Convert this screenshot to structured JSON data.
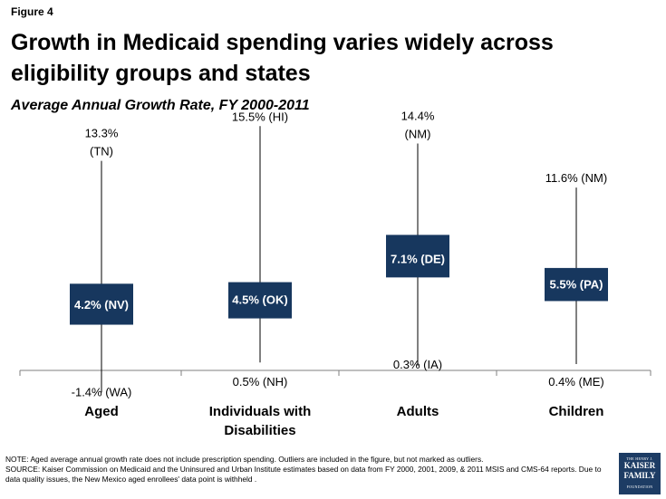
{
  "figure_label": "Figure 4",
  "title": "Growth in Medicaid spending varies widely across eligibility groups and states",
  "subtitle": "Average Annual Growth Rate, FY 2000-2011",
  "footnotes": {
    "note": "NOTE: Aged average annual growth rate does not include prescription spending. Outliers are included in the figure, but not marked as outliers.",
    "source": "SOURCE: Kaiser Commission on Medicaid and the Uninsured and Urban Institute estimates based on data from FY 2000, 2001, 2009, & 2011 MSIS and CMS-64 reports.  Due to data quality issues, the New Mexico aged enrollees' data point is withheld ."
  },
  "logo": {
    "line1": "THE HENRY J.",
    "line2": "KAISER",
    "line3": "FAMILY",
    "line4": "FOUNDATION"
  },
  "colors": {
    "box": "#17375e",
    "box_text": "#ffffff",
    "line": "#7f7f7f"
  },
  "chart_data": {
    "type": "box",
    "title": "Average Annual Growth Rate, FY 2000-2011",
    "units": "percent",
    "ylim": [
      -2,
      17
    ],
    "grid": false,
    "categories": [
      "Aged",
      "Individuals with Disabilities",
      "Adults",
      "Children"
    ],
    "category_lines": [
      [
        "Aged"
      ],
      [
        "Individuals with",
        "Disabilities"
      ],
      [
        "Adults"
      ],
      [
        "Children"
      ]
    ],
    "series": [
      {
        "name": "Aged",
        "max": 13.3,
        "max_label": [
          "13.3%",
          "(TN)"
        ],
        "median": 4.2,
        "median_label": "4.2% (NV)",
        "box_low": 2.9,
        "box_high": 5.5,
        "min": -1.4,
        "min_label": "-1.4% (WA)"
      },
      {
        "name": "Individuals with Disabilities",
        "max": 15.5,
        "max_label": [
          "15.5% (HI)"
        ],
        "median": 4.5,
        "median_label": "4.5% (OK)",
        "box_low": 3.3,
        "box_high": 5.6,
        "min": 0.5,
        "min_label": "0.5% (NH)"
      },
      {
        "name": "Adults",
        "max": 14.4,
        "max_label": [
          "14.4%",
          "(NM)"
        ],
        "median": 7.1,
        "median_label": "7.1% (DE)",
        "box_low": 5.9,
        "box_high": 8.6,
        "min": 0.3,
        "min_label": "0.3% (IA)"
      },
      {
        "name": "Children",
        "max": 11.6,
        "max_label": [
          "11.6% (NM)"
        ],
        "median": 5.5,
        "median_label": "5.5% (PA)",
        "box_low": 4.4,
        "box_high": 6.5,
        "min": 0.4,
        "min_label": "0.4%  (ME)"
      }
    ]
  }
}
